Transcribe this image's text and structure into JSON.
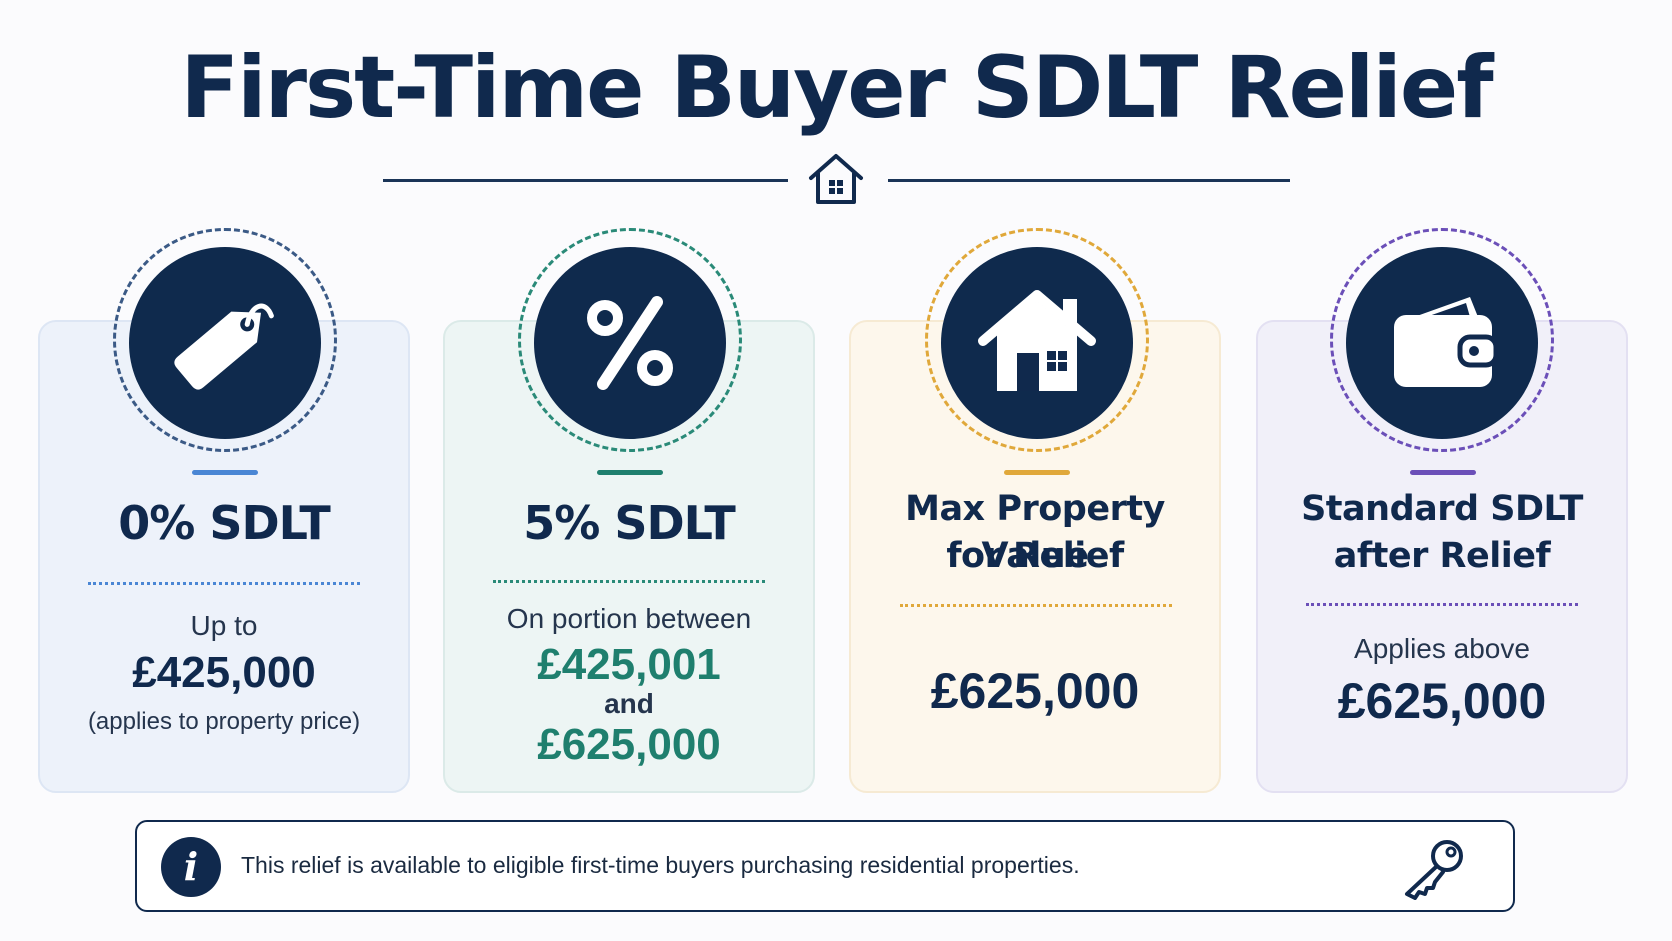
{
  "title": "First-Time Buyer SDLT Relief",
  "colors": {
    "navy": "#10294d",
    "blue_accent": "#4a86d4",
    "teal_accent": "#1f7f6e",
    "gold_accent": "#e0a83a",
    "purple_accent": "#6b4fb8"
  },
  "cards": [
    {
      "icon": "price-tag-icon",
      "heading": "0% SDLT",
      "line1": "Up to",
      "amount": "£425,000",
      "note": "(applies to property price)"
    },
    {
      "icon": "percent-icon",
      "heading": "5% SDLT",
      "line1": "On portion between",
      "amount1": "£425,001",
      "joiner": "and",
      "amount2": "£625,000"
    },
    {
      "icon": "house-icon",
      "heading_line1": "Max Property Value",
      "heading_line2": "for Relief",
      "amount": "£625,000"
    },
    {
      "icon": "wallet-icon",
      "heading_line1": "Standard SDLT",
      "heading_line2": "after Relief",
      "line1": "Applies above",
      "amount": "£625,000"
    }
  ],
  "info": {
    "icon": "info-icon",
    "badge": "i",
    "text": "This relief is available to eligible first-time buyers purchasing residential properties.",
    "end_icon": "key-icon"
  }
}
